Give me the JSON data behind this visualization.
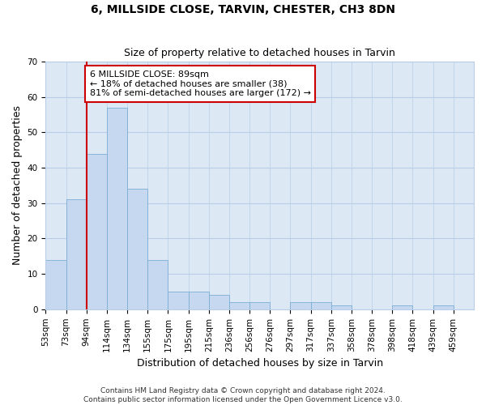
{
  "title": "6, MILLSIDE CLOSE, TARVIN, CHESTER, CH3 8DN",
  "subtitle": "Size of property relative to detached houses in Tarvin",
  "xlabel": "Distribution of detached houses by size in Tarvin",
  "ylabel": "Number of detached properties",
  "bin_labels": [
    "53sqm",
    "73sqm",
    "94sqm",
    "114sqm",
    "134sqm",
    "155sqm",
    "175sqm",
    "195sqm",
    "215sqm",
    "236sqm",
    "256sqm",
    "276sqm",
    "297sqm",
    "317sqm",
    "337sqm",
    "358sqm",
    "378sqm",
    "398sqm",
    "418sqm",
    "439sqm",
    "459sqm"
  ],
  "bar_heights": [
    14,
    31,
    44,
    57,
    34,
    14,
    5,
    5,
    4,
    2,
    2,
    0,
    2,
    2,
    1,
    0,
    0,
    1,
    0,
    1,
    0
  ],
  "bar_color": "#c5d8f0",
  "bar_edge_color": "#7aadd4",
  "vline_x": 2,
  "vline_color": "#cc0000",
  "ylim": [
    0,
    70
  ],
  "yticks": [
    0,
    10,
    20,
    30,
    40,
    50,
    60,
    70
  ],
  "annotation_text": "6 MILLSIDE CLOSE: 89sqm\n← 18% of detached houses are smaller (38)\n81% of semi-detached houses are larger (172) →",
  "annotation_box_color": "#ffffff",
  "annotation_border_color": "#cc0000",
  "footer_text": "Contains HM Land Registry data © Crown copyright and database right 2024.\nContains public sector information licensed under the Open Government Licence v3.0.",
  "bg_color": "#ffffff",
  "plot_bg_color": "#dde8f5",
  "grid_color": "#b8cde8",
  "title_fontsize": 10,
  "subtitle_fontsize": 9,
  "axis_label_fontsize": 9,
  "tick_fontsize": 7.5,
  "annotation_fontsize": 8,
  "footer_fontsize": 6.5
}
